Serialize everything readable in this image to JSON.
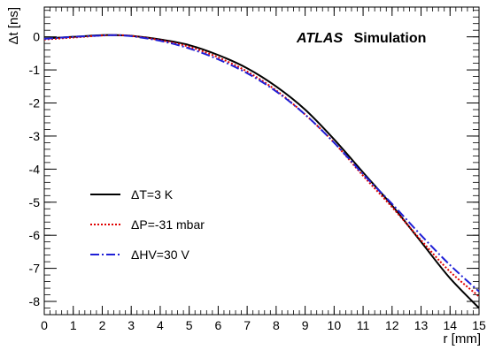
{
  "chart_data": {
    "type": "line",
    "xlabel": "r [mm]",
    "ylabel": "Δt [ns]",
    "xlim": [
      0,
      15
    ],
    "ylim": [
      -8.4,
      0.9
    ],
    "x_ticks": [
      0,
      1,
      2,
      3,
      4,
      5,
      6,
      7,
      8,
      9,
      10,
      11,
      12,
      13,
      14,
      15
    ],
    "y_ticks": [
      0,
      -1,
      -2,
      -3,
      -4,
      -5,
      -6,
      -7,
      -8
    ],
    "watermark": {
      "brand": "ATLAS",
      "text": "Simulation"
    },
    "legend_position": "left-middle",
    "grid": false,
    "x": [
      0,
      1,
      2,
      2.5,
      3,
      4,
      5,
      6,
      7,
      8,
      9,
      10,
      11,
      12,
      13,
      14,
      15
    ],
    "series": [
      {
        "name": "ΔT=3 K",
        "color": "#000000",
        "style": "solid",
        "values": [
          -0.05,
          0.0,
          0.05,
          0.05,
          0.03,
          -0.08,
          -0.25,
          -0.55,
          -0.95,
          -1.5,
          -2.2,
          -3.1,
          -4.1,
          -5.1,
          -6.2,
          -7.3,
          -8.2
        ]
      },
      {
        "name": "ΔP=-31 mbar",
        "color": "#e00000",
        "style": "dotted",
        "values": [
          -0.08,
          -0.02,
          0.04,
          0.05,
          0.03,
          -0.1,
          -0.3,
          -0.62,
          -1.05,
          -1.62,
          -2.35,
          -3.2,
          -4.2,
          -5.15,
          -6.15,
          -7.1,
          -7.85
        ]
      },
      {
        "name": "ΔHV=30 V",
        "color": "#1f1fd6",
        "style": "dashdot",
        "values": [
          -0.06,
          0.0,
          0.04,
          0.05,
          0.02,
          -0.12,
          -0.35,
          -0.68,
          -1.1,
          -1.65,
          -2.35,
          -3.2,
          -4.15,
          -5.05,
          -6.0,
          -6.9,
          -7.7
        ]
      }
    ]
  }
}
